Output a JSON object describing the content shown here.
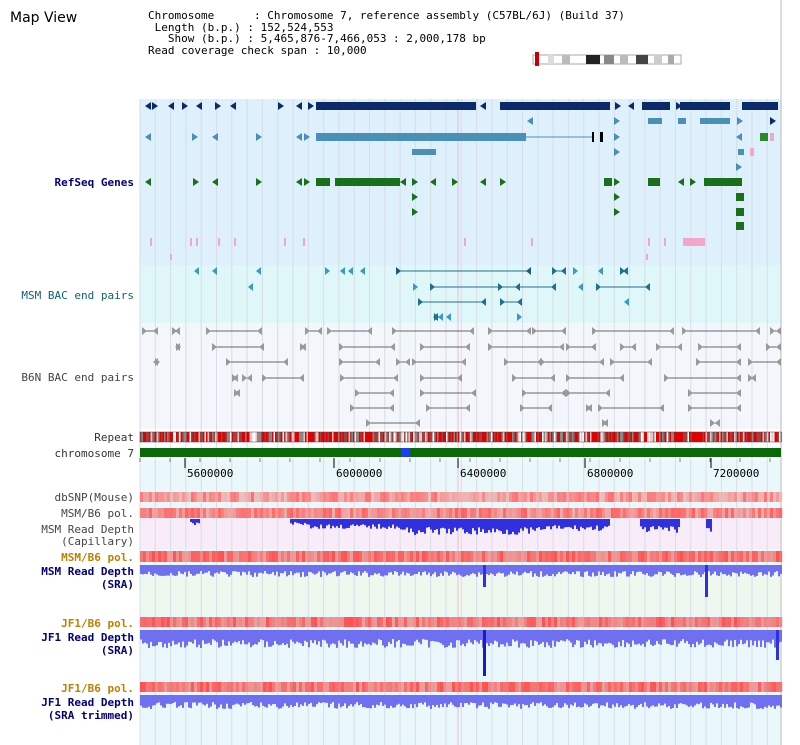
{
  "window": {
    "title": "Map View"
  },
  "info": {
    "chromosome_key": "Chromosome",
    "chromosome_val": "Chromosome 7, reference assembly (C57BL/6J) (Build 37)",
    "length_key": "Length (b.p.)",
    "length_val": "152,524,553",
    "show_key": "Show (b.p.)",
    "show_val": "5,465,876-7,466,053 : 2,000,178 bp",
    "coverage_key": "Read coverage check span",
    "coverage_val": "10,000"
  },
  "tracks": {
    "refseq": "RefSeq Genes",
    "msm_bac": "MSM BAC end pairs",
    "b6n_bac": "B6N BAC end pairs",
    "repeat": "Repeat",
    "chromosome": "chromosome 7",
    "dbsnp": "dbSNP(Mouse)",
    "msm_b6_pol_1": "MSM/B6 pol.",
    "msm_depth_cap_1": "MSM Read Depth",
    "msm_depth_cap_2": "(Capillary)",
    "msm_b6_pol_2": "MSM/B6 pol.",
    "msm_depth_sra_1": "MSM Read Depth",
    "msm_depth_sra_2": "(SRA)",
    "jf1_b6_pol_1": "JF1/B6 pol.",
    "jf1_depth_sra_1": "JF1 Read Depth",
    "jf1_depth_sra_2": "(SRA)",
    "jf1_b6_pol_2": "JF1/B6 pol.",
    "jf1_depth_trim_1": "JF1 Read Depth",
    "jf1_depth_trim_2": "(SRA trimmed)"
  },
  "axis": {
    "ticks": [
      "5600000",
      "6000000",
      "6400000",
      "6800000",
      "7200000"
    ]
  },
  "colors": {
    "refseq_bg": "#ddf0fb",
    "bac_msm_bg": "#e0f7fa",
    "b6n_bg": "#f3f6fb",
    "gene_dark": "#0a2a6a",
    "gene_mid": "#4a8fb6",
    "gene_green": "#1a6f1a",
    "gene_pink": "#f4a6c8",
    "chromosome": "#0a6a0a",
    "highlight": "#1e3cff",
    "depth_blue": "#6f6ff2",
    "depth_dark": "#1a1acc"
  }
}
